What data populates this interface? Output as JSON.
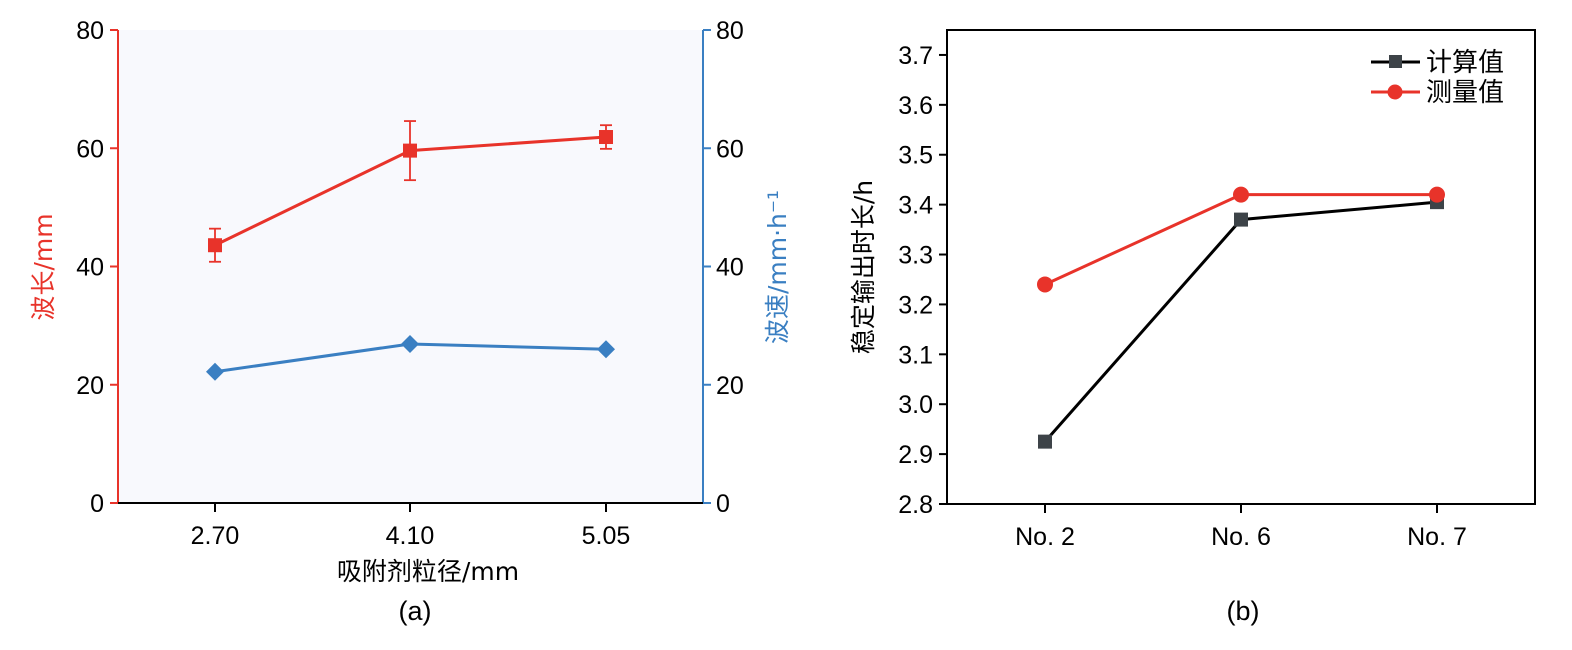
{
  "chart_data": [
    {
      "panel_label": "(a)",
      "type": "line",
      "xlabel": "吸附剂粒径/mm",
      "categories": [
        "2.70",
        "4.10",
        "5.05"
      ],
      "y_left": {
        "label": "波长/mm",
        "lim": [
          0,
          80
        ],
        "ticks": [
          "0",
          "20",
          "40",
          "60",
          "80"
        ],
        "color": "#e8332a"
      },
      "y_right": {
        "label": "波速/mm·h⁻¹",
        "lim": [
          0,
          80
        ],
        "ticks": [
          "0",
          "20",
          "40",
          "60",
          "80"
        ],
        "color": "#3a7fc2"
      },
      "background": "#f8f9fd",
      "series": [
        {
          "axis": "left",
          "marker": "square",
          "color": "#e8332a",
          "values": [
            43.6,
            59.6,
            61.9
          ],
          "error": [
            2.8,
            5.0,
            2.0
          ]
        },
        {
          "axis": "right",
          "marker": "diamond",
          "color": "#3a7fc2",
          "values": [
            22.2,
            26.9,
            26.0
          ]
        }
      ]
    },
    {
      "panel_label": "(b)",
      "type": "line",
      "xlabel": "",
      "ylabel": "稳定输出时长/h",
      "categories": [
        "No. 2",
        "No. 6",
        "No. 7"
      ],
      "ylim": [
        2.8,
        3.75
      ],
      "yticks": [
        "2.8",
        "2.9",
        "3.0",
        "3.1",
        "3.2",
        "3.3",
        "3.4",
        "3.5",
        "3.6",
        "3.7"
      ],
      "legend": "top-right",
      "series": [
        {
          "name": "计算值",
          "marker": "square",
          "color": "#000000",
          "marker_color": "#3d4348",
          "values": [
            2.925,
            3.37,
            3.405
          ]
        },
        {
          "name": "测量值",
          "marker": "circle",
          "color": "#e8332a",
          "values": [
            3.24,
            3.42,
            3.42
          ]
        }
      ]
    }
  ]
}
